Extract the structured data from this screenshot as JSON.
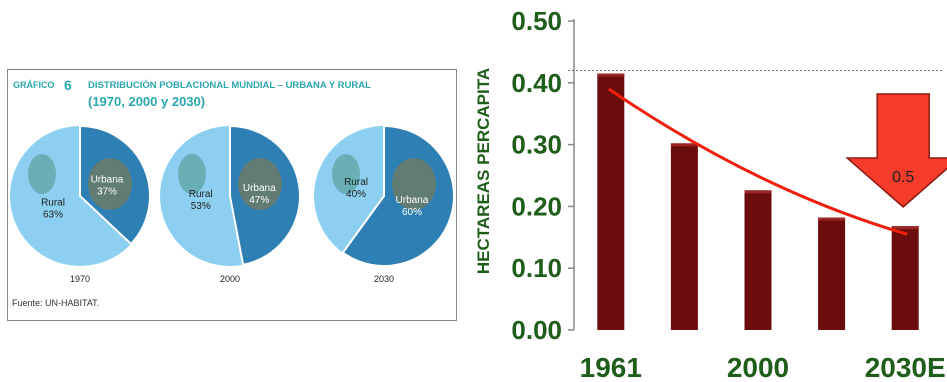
{
  "chart_data": [
    {
      "type": "pie",
      "header": {
        "label": "GRÁFICO",
        "number": "6",
        "title": "DISTRIBUCIÓN POBLACIONAL MUNDIAL – URBANA Y RURAL",
        "subtitle": "(1970, 2000 y 2030)"
      },
      "source": "Fuente: UN-HABITAT.",
      "pies": [
        {
          "year": "1970",
          "slices": [
            {
              "label": "Urbana",
              "value": 37,
              "value_label": "37%",
              "color": "#2e7fb4"
            },
            {
              "label": "Rural",
              "value": 63,
              "value_label": "63%",
              "color": "#8ccff0"
            }
          ]
        },
        {
          "year": "2000",
          "slices": [
            {
              "label": "Urbana",
              "value": 47,
              "value_label": "47%",
              "color": "#2e7fb4"
            },
            {
              "label": "Rural",
              "value": 53,
              "value_label": "53%",
              "color": "#8ccff0"
            }
          ]
        },
        {
          "year": "2030",
          "slices": [
            {
              "label": "Urbana",
              "value": 60,
              "value_label": "60%",
              "color": "#2e7fb4"
            },
            {
              "label": "Rural",
              "value": 40,
              "value_label": "40%",
              "color": "#8ccff0"
            }
          ]
        }
      ]
    },
    {
      "type": "bar",
      "ylabel": "HECTAREAS PERCAPITA",
      "ylim": [
        0,
        0.5
      ],
      "yticks": [
        "0.00",
        "0.10",
        "0.20",
        "0.30",
        "0.40",
        "0.50"
      ],
      "x_labels": [
        "1961",
        "2000",
        "2030E"
      ],
      "values": [
        0.415,
        0.302,
        0.226,
        0.182,
        0.168
      ],
      "reference_line": 0.42,
      "trend": [
        0.39,
        0.155
      ],
      "arrow_label": "0.5",
      "colors": {
        "bar": "#6b0d0d",
        "bar_highlight": "#9c2626",
        "axis_text": "#1f5d1a",
        "trend": "#f01f0c",
        "arrow": "#f53b2a",
        "arrow_border": "#8c1a12"
      }
    }
  ]
}
